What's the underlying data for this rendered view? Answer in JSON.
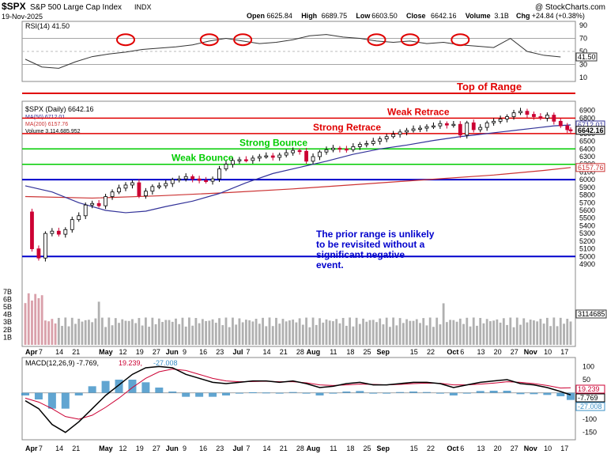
{
  "header": {
    "symbol": "$SPX",
    "description": "S&P 500 Large Cap Index",
    "exchange": "INDX",
    "date": "19-Nov-2025",
    "copyright": "@ StockCharts.com",
    "quote": {
      "open_label": "Open",
      "open": "6625.84",
      "high_label": "High",
      "high": "6689.75",
      "low_label": "Low",
      "low": "6603.50",
      "close_label": "Close",
      "close": "6642.16",
      "volume_label": "Volume",
      "volume": "3.1B",
      "chg_label": "Chg",
      "chg": "+24.84 (+0.38%)"
    }
  },
  "colors": {
    "up": "#000000",
    "down": "#cc0033",
    "ma50": "#333399",
    "ma200": "#cc3333",
    "range_red": "#e00000",
    "bounce_green": "#00cc00",
    "support_blue": "#0000cc",
    "macd_hist": "#3a8fc6",
    "volume": "#b0b0b0",
    "rsi_circle": "#e00000",
    "label_blue": "#0000cc"
  },
  "chart_data": [
    {
      "type": "line",
      "title": "RSI(14) 41.50",
      "legend": "RSI(14) 41.50",
      "last_value_label": "41.50",
      "overbought": 70,
      "oversold": 30,
      "y_ticks": [
        "90",
        "70",
        "50",
        "30",
        "10"
      ],
      "ylim": [
        5,
        95
      ],
      "x": [
        0,
        5,
        10,
        15,
        20,
        25,
        30,
        35,
        40,
        45,
        50,
        55,
        60,
        65,
        70,
        75,
        80,
        85,
        90,
        95,
        100,
        105,
        110,
        115,
        120,
        125,
        130,
        135,
        140,
        145,
        150,
        155,
        160
      ],
      "values": [
        38,
        26,
        24,
        34,
        42,
        46,
        49,
        53,
        55,
        57,
        60,
        66,
        70,
        66,
        62,
        64,
        68,
        74,
        76,
        72,
        70,
        66,
        64,
        66,
        62,
        64,
        60,
        58,
        56,
        70,
        50,
        44,
        41.5
      ],
      "highlight_circles_at_x": [
        30,
        55,
        65,
        105,
        115,
        130
      ]
    },
    {
      "type": "candlestick",
      "title": "$SPX (Daily) 6642.16",
      "legend": [
        "$SPX (Daily) 6642.16",
        "MA(50) 6712.01",
        "MA(200) 6157.76",
        "Volume 3,114,685,952"
      ],
      "ylim": [
        3850,
        7000
      ],
      "y_ticks": [
        "6900",
        "6800",
        "6700",
        "6600",
        "6500",
        "6400",
        "6300",
        "6200",
        "6100",
        "6000",
        "5900",
        "5800",
        "5700",
        "5600",
        "5500",
        "5400",
        "5300",
        "5200",
        "5100",
        "5000",
        "4900"
      ],
      "x_ticks": [
        {
          "label": "Apr",
          "x": 0,
          "bold": true
        },
        {
          "label": "7",
          "x": 4
        },
        {
          "label": "14",
          "x": 9
        },
        {
          "label": "21",
          "x": 14
        },
        {
          "label": "May",
          "x": 22,
          "bold": true
        },
        {
          "label": "12",
          "x": 28
        },
        {
          "label": "19",
          "x": 33
        },
        {
          "label": "27",
          "x": 38
        },
        {
          "label": "Jun",
          "x": 42,
          "bold": true
        },
        {
          "label": "9",
          "x": 47
        },
        {
          "label": "16",
          "x": 52
        },
        {
          "label": "23",
          "x": 57
        },
        {
          "label": "Jul",
          "x": 62,
          "bold": true
        },
        {
          "label": "7",
          "x": 66
        },
        {
          "label": "14",
          "x": 71
        },
        {
          "label": "21",
          "x": 76
        },
        {
          "label": "28",
          "x": 81
        },
        {
          "label": "Aug",
          "x": 84,
          "bold": true
        },
        {
          "label": "11",
          "x": 91
        },
        {
          "label": "18",
          "x": 96
        },
        {
          "label": "25",
          "x": 101
        },
        {
          "label": "Sep",
          "x": 105,
          "bold": true
        },
        {
          "label": "15",
          "x": 115
        },
        {
          "label": "22",
          "x": 120
        },
        {
          "label": "Oct",
          "x": 126,
          "bold": true
        },
        {
          "label": "6",
          "x": 130
        },
        {
          "label": "13",
          "x": 135
        },
        {
          "label": "20",
          "x": 140
        },
        {
          "label": "27",
          "x": 145
        },
        {
          "label": "Nov",
          "x": 149,
          "bold": true
        },
        {
          "label": "10",
          "x": 155
        },
        {
          "label": "17",
          "x": 160
        }
      ],
      "close_x": [
        0,
        2,
        4,
        6,
        8,
        10,
        12,
        14,
        16,
        18,
        20,
        22,
        24,
        26,
        28,
        30,
        32,
        34,
        36,
        38,
        40,
        42,
        44,
        46,
        48,
        50,
        52,
        54,
        56,
        58,
        60,
        62,
        64,
        66,
        68,
        70,
        72,
        74,
        76,
        78,
        80,
        82,
        84,
        86,
        88,
        90,
        92,
        94,
        96,
        98,
        100,
        102,
        104,
        106,
        108,
        110,
        112,
        114,
        116,
        118,
        120,
        122,
        124,
        126,
        128,
        130,
        132,
        134,
        136,
        138,
        140,
        142,
        144,
        146,
        148,
        150,
        152,
        154,
        156,
        158,
        160,
        162,
        163
      ],
      "close": [
        5580,
        5100,
        4980,
        5300,
        5330,
        5290,
        5350,
        5480,
        5530,
        5670,
        5690,
        5660,
        5780,
        5840,
        5890,
        5930,
        5960,
        5790,
        5850,
        5910,
        5920,
        5950,
        6000,
        6010,
        6040,
        6010,
        5990,
        5980,
        6010,
        6140,
        6200,
        6250,
        6260,
        6250,
        6280,
        6300,
        6310,
        6290,
        6320,
        6350,
        6380,
        6370,
        6240,
        6300,
        6360,
        6390,
        6410,
        6400,
        6390,
        6430,
        6460,
        6470,
        6500,
        6530,
        6560,
        6590,
        6620,
        6640,
        6660,
        6670,
        6690,
        6700,
        6730,
        6710,
        6720,
        6580,
        6740,
        6650,
        6680,
        6740,
        6760,
        6790,
        6820,
        6870,
        6890,
        6850,
        6820,
        6800,
        6840,
        6760,
        6700,
        6650,
        6642.16
      ],
      "ma50": {
        "x": [
          0,
          8,
          16,
          24,
          30,
          36,
          42,
          50,
          58,
          66,
          74,
          82,
          90,
          98,
          106,
          114,
          122,
          130,
          138,
          146,
          152,
          158,
          163
        ],
        "values": [
          5920,
          5840,
          5700,
          5600,
          5570,
          5590,
          5650,
          5720,
          5820,
          5960,
          6080,
          6160,
          6240,
          6330,
          6400,
          6450,
          6510,
          6560,
          6600,
          6640,
          6670,
          6700,
          6712.01
        ]
      },
      "ma200": {
        "x": [
          0,
          20,
          40,
          60,
          80,
          100,
          120,
          140,
          155,
          163
        ],
        "values": [
          5780,
          5760,
          5790,
          5830,
          5880,
          5940,
          6000,
          6060,
          6120,
          6157.76
        ]
      },
      "volume_axis": [
        "7B",
        "6B",
        "5B",
        "4B",
        "3B",
        "2B",
        "1B"
      ],
      "volume_label": "3114685",
      "ma50_tag": "6712.01",
      "close_tag": "6642.16",
      "ma200_tag": "6157.76",
      "levels": [
        {
          "label": "Weak Retrace",
          "y": 6800
        },
        {
          "label": "Strong Retrace",
          "y": 6600
        },
        {
          "label": "Strong Bounce",
          "y": 6400
        },
        {
          "label": "Weak Bounce",
          "y": 6200
        },
        {
          "label": "",
          "y": 6000
        },
        {
          "label": "",
          "y": 5000
        }
      ],
      "top_label": "Top of Range",
      "annotation": [
        "The prior range is unlikely",
        "to be revisited without a",
        "significant negative",
        "event."
      ]
    },
    {
      "type": "line",
      "title": "MACD(12,26,9) -7.769, 19.239, -27.008",
      "legend": {
        "name": "MACD(12,26,9)",
        "macd": "-7.769",
        "signal": "19.239",
        "hist": "-27.008"
      },
      "ylim": [
        -175,
        125
      ],
      "y_ticks": [
        "100",
        "50",
        "0",
        "-50",
        "-100",
        "-150"
      ],
      "tags": [
        "19.239",
        "-7.769",
        "-27.008"
      ],
      "x": [
        0,
        4,
        8,
        12,
        16,
        20,
        24,
        28,
        32,
        36,
        40,
        44,
        48,
        52,
        56,
        60,
        64,
        68,
        72,
        76,
        80,
        84,
        88,
        92,
        96,
        100,
        104,
        108,
        112,
        116,
        120,
        124,
        128,
        132,
        136,
        140,
        144,
        148,
        152,
        156,
        160,
        163
      ],
      "macd": [
        -30,
        -60,
        -120,
        -150,
        -110,
        -60,
        -10,
        30,
        70,
        95,
        100,
        95,
        70,
        55,
        40,
        35,
        40,
        45,
        45,
        40,
        45,
        35,
        20,
        25,
        35,
        40,
        30,
        30,
        35,
        40,
        40,
        35,
        20,
        30,
        40,
        45,
        50,
        35,
        30,
        20,
        5,
        -7.769
      ],
      "signal": [
        -20,
        -35,
        -60,
        -90,
        -100,
        -85,
        -55,
        -20,
        20,
        55,
        80,
        90,
        85,
        70,
        55,
        45,
        42,
        43,
        44,
        42,
        42,
        38,
        30,
        28,
        30,
        33,
        32,
        30,
        32,
        35,
        37,
        36,
        30,
        30,
        33,
        37,
        42,
        40,
        35,
        28,
        18,
        19.239
      ]
    }
  ]
}
